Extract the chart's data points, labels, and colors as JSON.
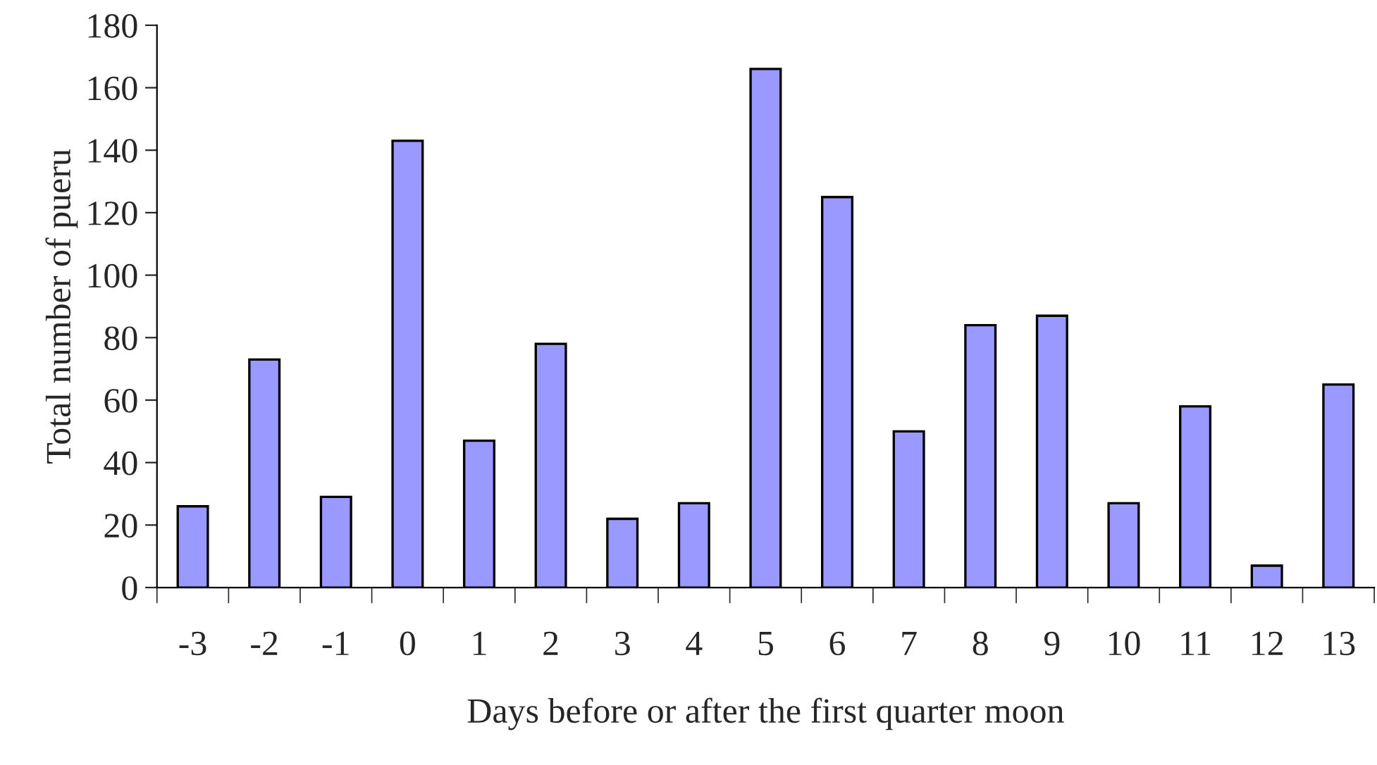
{
  "chart_data": {
    "type": "bar",
    "xlabel": "Days before or after the first quarter moon",
    "ylabel": "Total number of pueru",
    "categories": [
      "-3",
      "-2",
      "-1",
      "0",
      "1",
      "2",
      "3",
      "4",
      "5",
      "6",
      "7",
      "8",
      "9",
      "10",
      "11",
      "12",
      "13"
    ],
    "values": [
      26,
      73,
      29,
      143,
      47,
      78,
      22,
      27,
      166,
      125,
      50,
      84,
      87,
      27,
      58,
      7,
      65
    ],
    "color": "#9999ff",
    "ylim": [
      0,
      180
    ],
    "yticks": [
      0,
      20,
      40,
      60,
      80,
      100,
      120,
      140,
      160,
      180
    ],
    "grid": false,
    "legend": false
  }
}
